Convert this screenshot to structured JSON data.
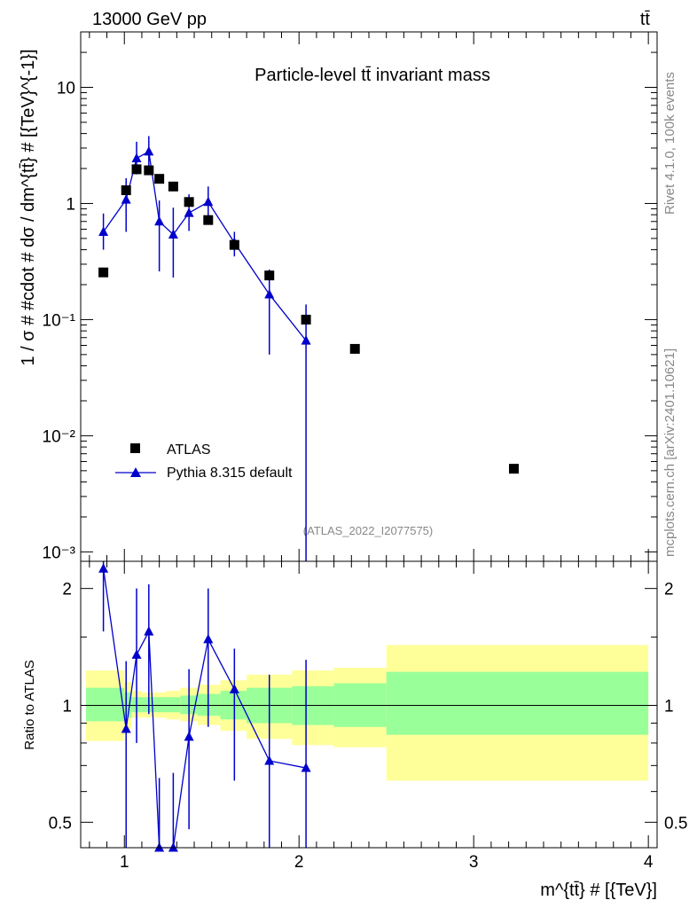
{
  "header": {
    "energy_label": "13000 GeV pp",
    "process_label": "tt̄",
    "side_text_top": "Rivet 4.1.0,  100k events",
    "side_text_bottom": "mcplots.cern.ch [arXiv:2401.10621]",
    "analysis_id": "(ATLAS_2022_I2077575)"
  },
  "chart_data": [
    {
      "type": "scatter",
      "title": "Particle-level tt̄ invariant mass",
      "ylabel": "1 / σ # #cdot # dσ / dm^{tt̄} # [{TeV}^{-1}]",
      "xlabel": "m^{tt̄} # [{TeV}]",
      "xscale": "linear",
      "yscale": "log",
      "xlim": [
        0.75,
        4.05
      ],
      "ylim": [
        0.00083,
        30
      ],
      "y_ticks": [
        {
          "value": 0.001,
          "label": "10⁻³"
        },
        {
          "value": 0.01,
          "label": "10⁻²"
        },
        {
          "value": 0.1,
          "label": "10⁻¹"
        },
        {
          "value": 1,
          "label": "1"
        },
        {
          "value": 10,
          "label": "10"
        }
      ],
      "x_ticks": [
        {
          "value": 1,
          "label": "1"
        },
        {
          "value": 2,
          "label": "2"
        },
        {
          "value": 3,
          "label": "3"
        },
        {
          "value": 4,
          "label": "4"
        }
      ],
      "legend_position": "bottom-left",
      "series": [
        {
          "name": "ATLAS",
          "marker": "square",
          "color": "#000000",
          "x": [
            0.88,
            1.01,
            1.07,
            1.14,
            1.2,
            1.28,
            1.37,
            1.48,
            1.63,
            1.83,
            2.04,
            2.32,
            3.23
          ],
          "y": [
            0.255,
            1.3,
            1.97,
            1.93,
            1.63,
            1.4,
            1.03,
            0.72,
            0.44,
            0.24,
            0.1,
            0.056,
            0.0052
          ]
        },
        {
          "name": "Pythia 8.315 default",
          "marker": "triangle",
          "line": true,
          "color": "#0000cc",
          "x": [
            0.88,
            1.01,
            1.07,
            1.14,
            1.2,
            1.28,
            1.37,
            1.48,
            1.63,
            1.83,
            2.04
          ],
          "y": [
            0.57,
            1.08,
            2.45,
            2.8,
            0.7,
            0.54,
            0.83,
            1.03,
            0.46,
            0.165,
            0.066
          ],
          "y_err_up": [
            0.82,
            1.65,
            3.4,
            3.8,
            1.06,
            0.92,
            1.2,
            1.4,
            0.57,
            0.27,
            0.135
          ],
          "y_err_down": [
            0.4,
            0.57,
            1.78,
            1.9,
            0.26,
            0.23,
            0.58,
            0.7,
            0.35,
            0.05,
            0.0001
          ]
        }
      ]
    },
    {
      "type": "ratio",
      "ylabel": "Ratio to ATLAS",
      "xlim": [
        0.75,
        4.05
      ],
      "ylim": [
        0.43,
        2.35
      ],
      "y_ticks": [
        {
          "value": 0.5,
          "label": "0.5"
        },
        {
          "value": 1,
          "label": "1"
        },
        {
          "value": 2,
          "label": "2"
        }
      ],
      "bins": [
        {
          "x0": 0.78,
          "x1": 1.0,
          "inner": [
            0.91,
            1.11
          ],
          "outer": [
            0.81,
            1.23
          ]
        },
        {
          "x0": 1.0,
          "x1": 1.04,
          "inner": [
            0.93,
            1.08
          ],
          "outer": [
            0.87,
            1.15
          ]
        },
        {
          "x0": 1.04,
          "x1": 1.1,
          "inner": [
            0.96,
            1.05
          ],
          "outer": [
            0.93,
            1.09
          ]
        },
        {
          "x0": 1.1,
          "x1": 1.17,
          "inner": [
            0.96,
            1.05
          ],
          "outer": [
            0.93,
            1.08
          ]
        },
        {
          "x0": 1.17,
          "x1": 1.24,
          "inner": [
            0.96,
            1.05
          ],
          "outer": [
            0.93,
            1.08
          ]
        },
        {
          "x0": 1.24,
          "x1": 1.32,
          "inner": [
            0.96,
            1.05
          ],
          "outer": [
            0.92,
            1.09
          ]
        },
        {
          "x0": 1.32,
          "x1": 1.42,
          "inner": [
            0.95,
            1.06
          ],
          "outer": [
            0.91,
            1.11
          ]
        },
        {
          "x0": 1.42,
          "x1": 1.55,
          "inner": [
            0.94,
            1.07
          ],
          "outer": [
            0.89,
            1.13
          ]
        },
        {
          "x0": 1.55,
          "x1": 1.7,
          "inner": [
            0.92,
            1.09
          ],
          "outer": [
            0.86,
            1.16
          ]
        },
        {
          "x0": 1.7,
          "x1": 1.96,
          "inner": [
            0.9,
            1.11
          ],
          "outer": [
            0.82,
            1.2
          ]
        },
        {
          "x0": 1.96,
          "x1": 2.2,
          "inner": [
            0.89,
            1.12
          ],
          "outer": [
            0.79,
            1.23
          ]
        },
        {
          "x0": 2.2,
          "x1": 2.5,
          "inner": [
            0.88,
            1.14
          ],
          "outer": [
            0.78,
            1.25
          ]
        },
        {
          "x0": 2.5,
          "x1": 4.0,
          "inner": [
            0.84,
            1.22
          ],
          "outer": [
            0.64,
            1.43
          ]
        }
      ],
      "band_colors": {
        "inner": "#99ff99",
        "outer": "#ffff99"
      },
      "ratio_series": {
        "name": "Pythia 8.315 default",
        "color": "#0000cc",
        "x": [
          0.88,
          1.01,
          1.07,
          1.14,
          1.2,
          1.28,
          1.37,
          1.48,
          1.63,
          1.83,
          2.04
        ],
        "y": [
          2.25,
          0.87,
          1.35,
          1.55,
          0.42,
          0.39,
          0.83,
          1.48,
          1.1,
          0.72,
          0.69
        ],
        "y_err_up": [
          3.0,
          1.3,
          2.0,
          2.05,
          0.65,
          0.67,
          1.24,
          2.0,
          1.4,
          1.2,
          1.31
        ],
        "y_err_down": [
          1.55,
          0.38,
          0.8,
          0.95,
          0.2,
          0.15,
          0.48,
          0.88,
          0.64,
          0.2,
          0.05
        ]
      }
    }
  ]
}
